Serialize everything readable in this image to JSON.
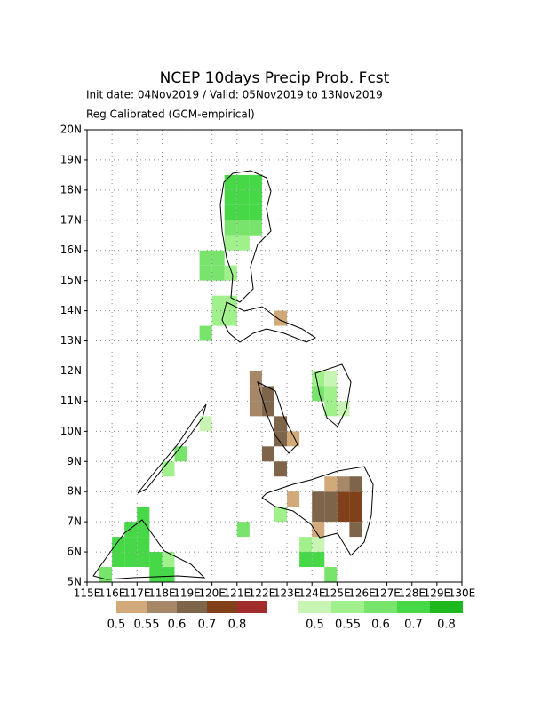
{
  "header": {
    "title": "NCEP 10days Precip Prob. Fcst",
    "subtitle": "Init date: 04Nov2019 / Valid: 05Nov2019 to 13Nov2019",
    "note": "Reg Calibrated (GCM-empirical)"
  },
  "map": {
    "lon_range": [
      115,
      130
    ],
    "lat_range": [
      5,
      20
    ],
    "cell_size": 0.5,
    "lon_ticks": [
      {
        "value": 115,
        "label": "115E"
      },
      {
        "value": 116,
        "label": "116E"
      },
      {
        "value": 117,
        "label": "117E"
      },
      {
        "value": 118,
        "label": "118E"
      },
      {
        "value": 119,
        "label": "119E"
      },
      {
        "value": 120,
        "label": "120E"
      },
      {
        "value": 121,
        "label": "121E"
      },
      {
        "value": 122,
        "label": "122E"
      },
      {
        "value": 123,
        "label": "123E"
      },
      {
        "value": 124,
        "label": "124E"
      },
      {
        "value": 125,
        "label": "125E"
      },
      {
        "value": 126,
        "label": "126E"
      },
      {
        "value": 127,
        "label": "127E"
      },
      {
        "value": 128,
        "label": "128E"
      },
      {
        "value": 129,
        "label": "129E"
      },
      {
        "value": 130,
        "label": "130E"
      }
    ],
    "lat_ticks": [
      {
        "value": 5,
        "label": "5N"
      },
      {
        "value": 6,
        "label": "6N"
      },
      {
        "value": 7,
        "label": "7N"
      },
      {
        "value": 8,
        "label": "8N"
      },
      {
        "value": 9,
        "label": "9N"
      },
      {
        "value": 10,
        "label": "10N"
      },
      {
        "value": 11,
        "label": "11N"
      },
      {
        "value": 12,
        "label": "12N"
      },
      {
        "value": 13,
        "label": "13N"
      },
      {
        "value": 14,
        "label": "14N"
      },
      {
        "value": 15,
        "label": "15N"
      },
      {
        "value": 16,
        "label": "16N"
      },
      {
        "value": 17,
        "label": "17N"
      },
      {
        "value": 18,
        "label": "18N"
      },
      {
        "value": 19,
        "label": "19N"
      },
      {
        "value": 20,
        "label": "20N"
      }
    ],
    "cells": [
      {
        "scale": "wet",
        "lon": 120.5,
        "lat": 17,
        "level": 3
      },
      {
        "scale": "wet",
        "lon": 121,
        "lat": 17,
        "level": 3
      },
      {
        "scale": "wet",
        "lon": 121.5,
        "lat": 17,
        "level": 3
      },
      {
        "scale": "wet",
        "lon": 120.5,
        "lat": 17.5,
        "level": 3
      },
      {
        "scale": "wet",
        "lon": 121,
        "lat": 17.5,
        "level": 3
      },
      {
        "scale": "wet",
        "lon": 121.5,
        "lat": 17.5,
        "level": 3
      },
      {
        "scale": "wet",
        "lon": 120.5,
        "lat": 18,
        "level": 3
      },
      {
        "scale": "wet",
        "lon": 121,
        "lat": 18,
        "level": 3
      },
      {
        "scale": "wet",
        "lon": 121.5,
        "lat": 18,
        "level": 3
      },
      {
        "scale": "wet",
        "lon": 120.5,
        "lat": 16.5,
        "level": 2
      },
      {
        "scale": "wet",
        "lon": 121,
        "lat": 16.5,
        "level": 2
      },
      {
        "scale": "wet",
        "lon": 121.5,
        "lat": 16.5,
        "level": 2
      },
      {
        "scale": "wet",
        "lon": 120.5,
        "lat": 16,
        "level": 1
      },
      {
        "scale": "wet",
        "lon": 121,
        "lat": 16,
        "level": 1
      },
      {
        "scale": "wet",
        "lon": 119.5,
        "lat": 15,
        "level": 2
      },
      {
        "scale": "wet",
        "lon": 120,
        "lat": 15,
        "level": 2
      },
      {
        "scale": "wet",
        "lon": 119.5,
        "lat": 15.5,
        "level": 2
      },
      {
        "scale": "wet",
        "lon": 120,
        "lat": 15.5,
        "level": 2
      },
      {
        "scale": "wet",
        "lon": 120.5,
        "lat": 15,
        "level": 1
      },
      {
        "scale": "wet",
        "lon": 120,
        "lat": 13.5,
        "level": 1
      },
      {
        "scale": "wet",
        "lon": 120.5,
        "lat": 13.5,
        "level": 1
      },
      {
        "scale": "wet",
        "lon": 120,
        "lat": 14,
        "level": 1
      },
      {
        "scale": "wet",
        "lon": 120.5,
        "lat": 14,
        "level": 1
      },
      {
        "scale": "wet",
        "lon": 119.5,
        "lat": 13,
        "level": 2
      },
      {
        "scale": "wet",
        "lon": 118.5,
        "lat": 9,
        "level": 2
      },
      {
        "scale": "wet",
        "lon": 118,
        "lat": 8.5,
        "level": 1
      },
      {
        "scale": "wet",
        "lon": 119.5,
        "lat": 10,
        "level": 0
      },
      {
        "scale": "wet",
        "lon": 124,
        "lat": 11.5,
        "level": 1
      },
      {
        "scale": "wet",
        "lon": 124.5,
        "lat": 11.5,
        "level": 0
      },
      {
        "scale": "wet",
        "lon": 124,
        "lat": 11,
        "level": 2
      },
      {
        "scale": "wet",
        "lon": 124.5,
        "lat": 11,
        "level": 1
      },
      {
        "scale": "wet",
        "lon": 124.5,
        "lat": 10.5,
        "level": 1
      },
      {
        "scale": "wet",
        "lon": 125,
        "lat": 10.5,
        "level": 0
      },
      {
        "scale": "wet",
        "lon": 123.5,
        "lat": 5.5,
        "level": 3
      },
      {
        "scale": "wet",
        "lon": 124,
        "lat": 5.5,
        "level": 3
      },
      {
        "scale": "wet",
        "lon": 124.5,
        "lat": 5,
        "level": 2
      },
      {
        "scale": "wet",
        "lon": 123.5,
        "lat": 6,
        "level": 1
      },
      {
        "scale": "wet",
        "lon": 124,
        "lat": 6,
        "level": 0
      },
      {
        "scale": "wet",
        "lon": 116,
        "lat": 5.5,
        "level": 3
      },
      {
        "scale": "wet",
        "lon": 116.5,
        "lat": 5.5,
        "level": 3
      },
      {
        "scale": "wet",
        "lon": 117,
        "lat": 5.5,
        "level": 3
      },
      {
        "scale": "wet",
        "lon": 116,
        "lat": 6,
        "level": 3
      },
      {
        "scale": "wet",
        "lon": 116.5,
        "lat": 6,
        "level": 3
      },
      {
        "scale": "wet",
        "lon": 117,
        "lat": 6,
        "level": 3
      },
      {
        "scale": "wet",
        "lon": 116.5,
        "lat": 6.5,
        "level": 3
      },
      {
        "scale": "wet",
        "lon": 117,
        "lat": 6.5,
        "level": 3
      },
      {
        "scale": "wet",
        "lon": 117,
        "lat": 7,
        "level": 3
      },
      {
        "scale": "wet",
        "lon": 115.5,
        "lat": 5,
        "level": 2
      },
      {
        "scale": "wet",
        "lon": 117.5,
        "lat": 5,
        "level": 3
      },
      {
        "scale": "wet",
        "lon": 117.5,
        "lat": 5.5,
        "level": 3
      },
      {
        "scale": "wet",
        "lon": 118,
        "lat": 5,
        "level": 3
      },
      {
        "scale": "wet",
        "lon": 118,
        "lat": 5.5,
        "level": 1
      },
      {
        "scale": "wet",
        "lon": 121,
        "lat": 6.5,
        "level": 2
      },
      {
        "scale": "wet",
        "lon": 122.5,
        "lat": 7,
        "level": 1
      },
      {
        "scale": "dry",
        "lon": 121.5,
        "lat": 10.5,
        "level": 1
      },
      {
        "scale": "dry",
        "lon": 121.5,
        "lat": 11,
        "level": 1
      },
      {
        "scale": "dry",
        "lon": 121.5,
        "lat": 11.5,
        "level": 1
      },
      {
        "scale": "dry",
        "lon": 122,
        "lat": 10.5,
        "level": 2
      },
      {
        "scale": "dry",
        "lon": 122,
        "lat": 11,
        "level": 2
      },
      {
        "scale": "dry",
        "lon": 122.5,
        "lat": 10,
        "level": 2
      },
      {
        "scale": "dry",
        "lon": 122.5,
        "lat": 9.5,
        "level": 2
      },
      {
        "scale": "dry",
        "lon": 122,
        "lat": 9,
        "level": 2
      },
      {
        "scale": "dry",
        "lon": 122.5,
        "lat": 8.5,
        "level": 2
      },
      {
        "scale": "dry",
        "lon": 122.5,
        "lat": 13.5,
        "level": 0
      },
      {
        "scale": "dry",
        "lon": 123,
        "lat": 9.5,
        "level": 0
      },
      {
        "scale": "dry",
        "lon": 124,
        "lat": 7,
        "level": 2
      },
      {
        "scale": "dry",
        "lon": 124.5,
        "lat": 7,
        "level": 2
      },
      {
        "scale": "dry",
        "lon": 124,
        "lat": 7.5,
        "level": 2
      },
      {
        "scale": "dry",
        "lon": 124.5,
        "lat": 7.5,
        "level": 2
      },
      {
        "scale": "dry",
        "lon": 125,
        "lat": 7,
        "level": 3
      },
      {
        "scale": "dry",
        "lon": 125.5,
        "lat": 7,
        "level": 3
      },
      {
        "scale": "dry",
        "lon": 125,
        "lat": 7.5,
        "level": 3
      },
      {
        "scale": "dry",
        "lon": 125.5,
        "lat": 7.5,
        "level": 3
      },
      {
        "scale": "dry",
        "lon": 125,
        "lat": 8,
        "level": 1
      },
      {
        "scale": "dry",
        "lon": 125.5,
        "lat": 8,
        "level": 2
      },
      {
        "scale": "dry",
        "lon": 124.5,
        "lat": 8,
        "level": 0
      },
      {
        "scale": "dry",
        "lon": 125.5,
        "lat": 6.5,
        "level": 2
      },
      {
        "scale": "dry",
        "lon": 124,
        "lat": 6.5,
        "level": 0
      },
      {
        "scale": "dry",
        "lon": 123,
        "lat": 7.5,
        "level": 0
      }
    ]
  },
  "legend": {
    "dry": {
      "labels": [
        "0.5",
        "0.55",
        "0.6",
        "0.7",
        "0.8"
      ],
      "colors": [
        "#d2aa7a",
        "#a68868",
        "#7e6448",
        "#80401a",
        "#a02c2c"
      ]
    },
    "wet": {
      "labels": [
        "0.5",
        "0.55",
        "0.6",
        "0.7",
        "0.8"
      ],
      "colors": [
        "#c8f5b4",
        "#a0f08c",
        "#78e46c",
        "#46d846",
        "#1eb91e"
      ]
    }
  }
}
